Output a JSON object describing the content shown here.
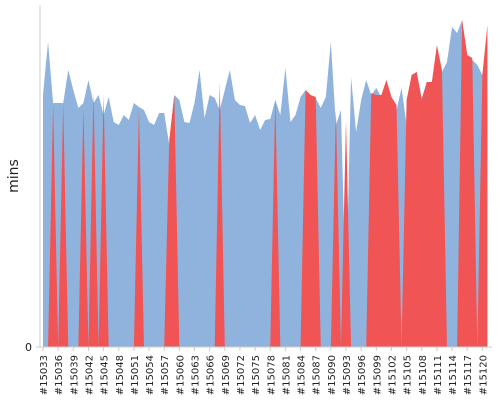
{
  "chart_data": {
    "type": "area",
    "y_label": "mins",
    "categories": [
      "#15033",
      null,
      null,
      "#15036",
      null,
      null,
      "#15039",
      null,
      null,
      "#15042",
      null,
      null,
      "#15045",
      null,
      null,
      "#15048",
      null,
      null,
      "#15051",
      null,
      null,
      "#15054",
      null,
      null,
      "#15057",
      null,
      null,
      "#15060",
      null,
      null,
      "#15063",
      null,
      null,
      "#15066",
      null,
      null,
      "#15069",
      null,
      null,
      "#15072",
      null,
      null,
      "#15075",
      null,
      null,
      "#15078",
      null,
      null,
      "#15081",
      null,
      null,
      "#15084",
      null,
      null,
      "#15087",
      null,
      null,
      "#15090",
      null,
      null,
      "#15093",
      null,
      null,
      "#15096",
      null,
      null,
      "#15099",
      null,
      null,
      "#15102",
      null,
      null,
      "#15105",
      null,
      null,
      "#15108",
      null,
      null,
      "#15111",
      null,
      null,
      "#15114",
      null,
      null,
      "#15117",
      null,
      null,
      "#15120",
      null
    ],
    "series": [
      {
        "color": "#8fb3dd",
        "values": [
          252,
          305,
          244,
          244,
          244,
          277,
          257,
          239,
          244,
          267,
          244,
          252,
          232,
          250,
          225,
          222,
          232,
          227,
          244,
          240,
          237,
          225,
          222,
          234,
          234,
          202,
          252,
          247,
          225,
          224,
          244,
          277,
          229,
          252,
          249,
          237,
          257,
          277,
          247,
          242,
          241,
          224,
          232,
          217,
          227,
          228,
          247,
          232,
          279,
          225,
          232,
          250,
          257,
          247,
          249,
          239,
          250,
          305,
          222,
          237,
          47,
          270,
          215,
          247,
          267,
          252,
          259,
          250,
          267,
          250,
          237,
          259,
          222,
          272,
          275,
          249,
          265,
          265,
          277,
          275,
          285,
          320,
          314,
          327,
          292,
          287,
          282,
          272,
          307
        ]
      },
      {
        "color": "#f05454",
        "values": [
          0,
          0,
          243,
          0,
          243,
          0,
          0,
          0,
          239,
          0,
          254,
          0,
          252,
          0,
          0,
          0,
          0,
          0,
          0,
          239,
          0,
          0,
          0,
          0,
          0,
          207,
          252,
          0,
          0,
          0,
          0,
          0,
          0,
          0,
          0,
          265,
          0,
          0,
          0,
          0,
          0,
          0,
          0,
          0,
          0,
          0,
          249,
          0,
          0,
          0,
          0,
          0,
          257,
          252,
          250,
          0,
          0,
          0,
          237,
          0,
          227,
          0,
          0,
          0,
          0,
          254,
          252,
          252,
          267,
          250,
          242,
          0,
          247,
          272,
          275,
          247,
          265,
          265,
          302,
          277,
          0,
          0,
          0,
          327,
          292,
          289,
          0,
          272,
          322
        ]
      }
    ],
    "ylim": [
      0,
      342
    ],
    "yticks": [
      0
    ]
  }
}
